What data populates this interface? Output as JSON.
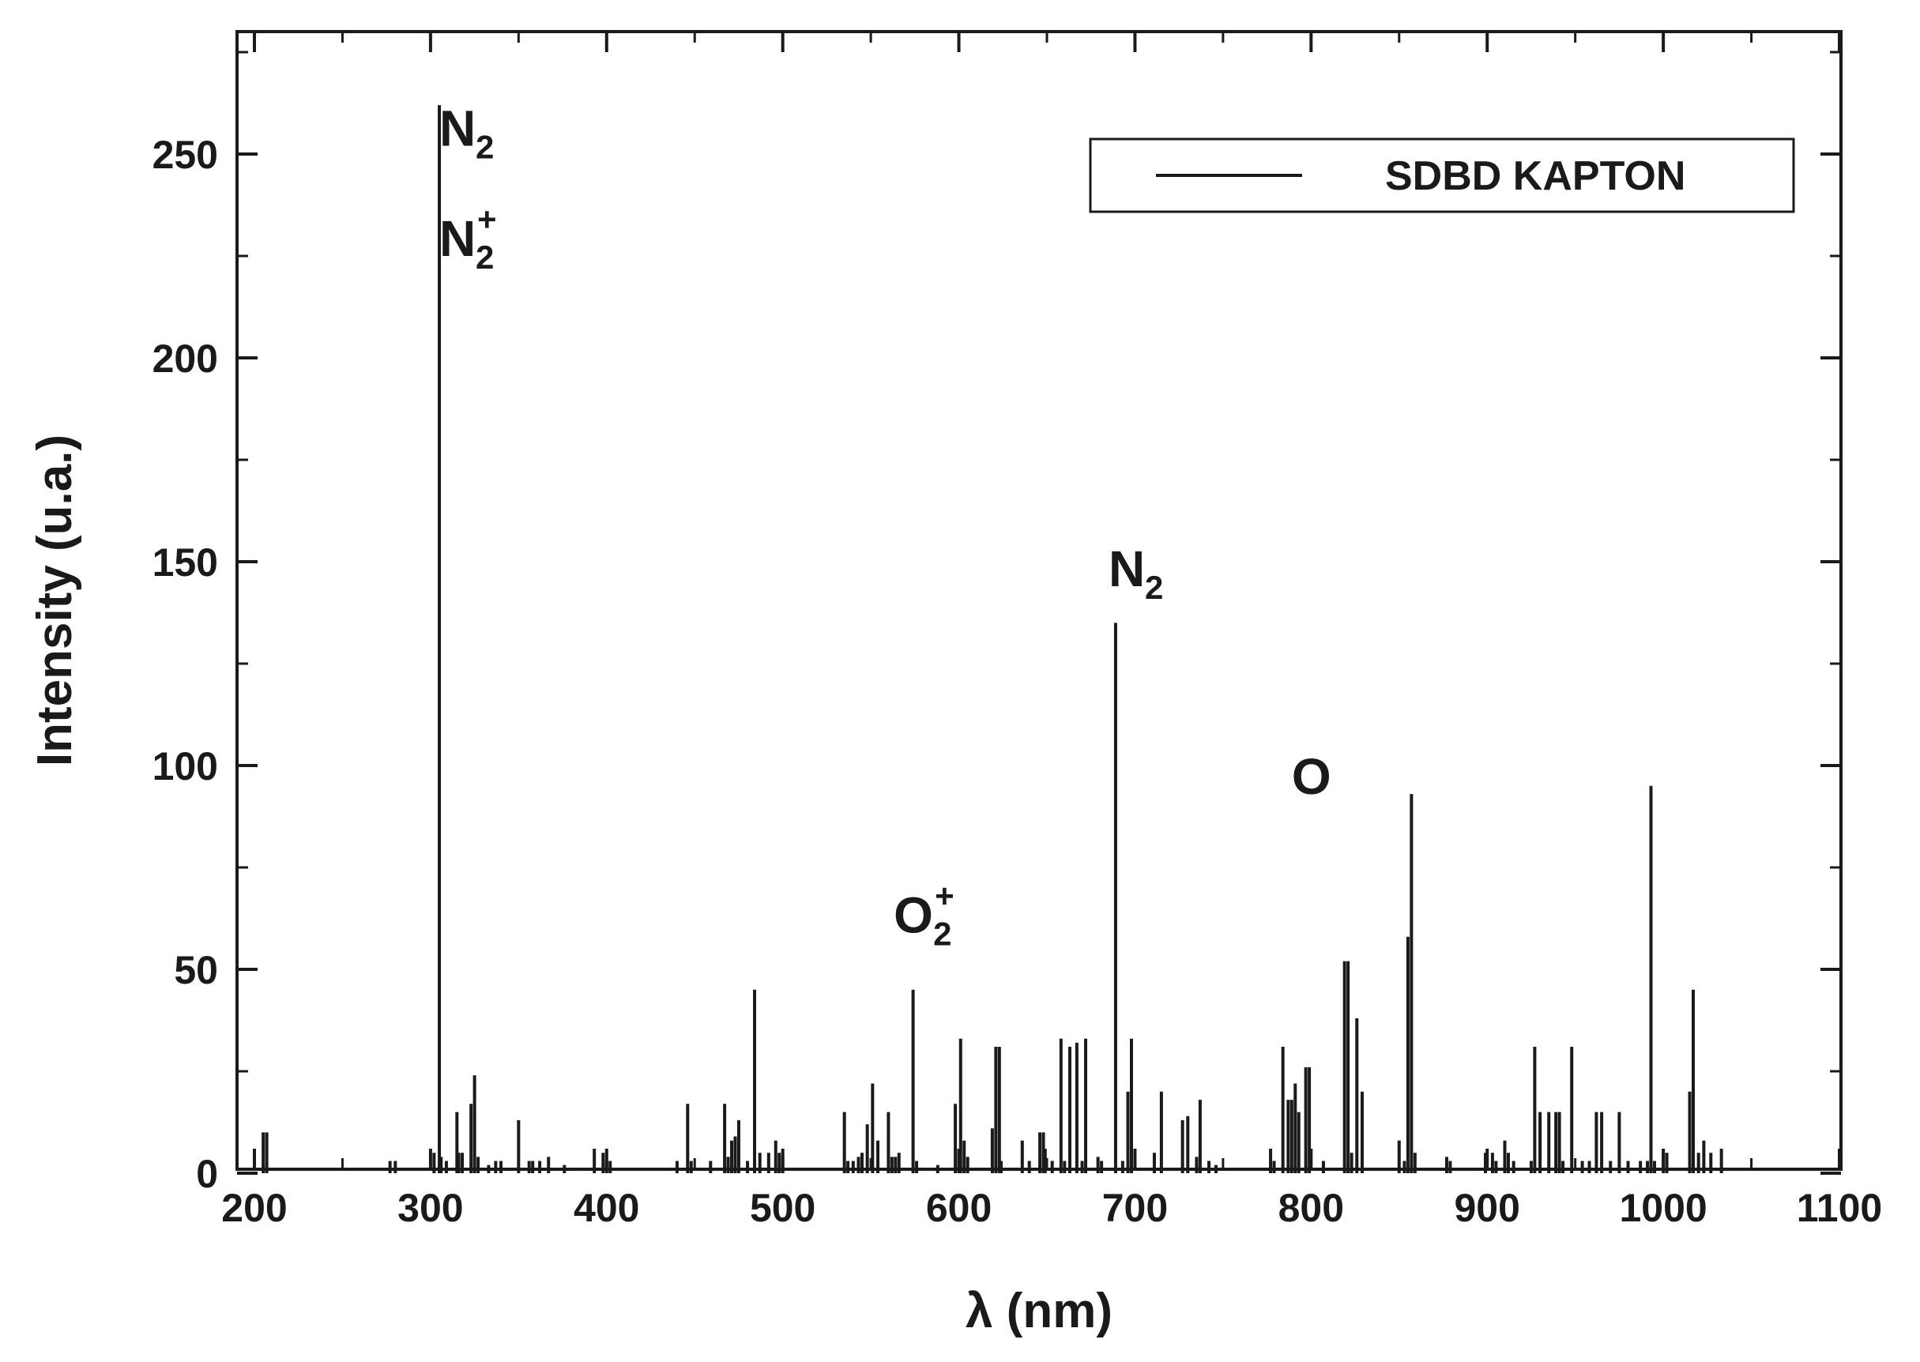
{
  "chart_data": {
    "type": "bar",
    "subtype": "emission-spectrum-lines",
    "xlabel": "λ (nm)",
    "ylabel": "Intensity (u.a.)",
    "xlim": [
      200,
      1100
    ],
    "ylim": [
      0,
      275
    ],
    "xticks": [
      200,
      300,
      400,
      500,
      600,
      700,
      800,
      900,
      1000,
      1100
    ],
    "yticks": [
      0,
      50,
      100,
      150,
      200,
      250
    ],
    "grid": false,
    "legend": {
      "placement": "top-right",
      "entries": [
        {
          "label": "SDBD KAPTON",
          "color": "#1a1a1a"
        }
      ]
    },
    "annotations": [
      {
        "id": "n2-a",
        "base": "N",
        "sub": "2",
        "sup": "",
        "x": 305,
        "y": 252
      },
      {
        "id": "n2plus",
        "base": "N",
        "sub": "2",
        "sup": "+",
        "x": 305,
        "y": 225
      },
      {
        "id": "o2plus",
        "base": "O",
        "sub": "2",
        "sup": "+",
        "x": 563,
        "y": 59
      },
      {
        "id": "n2-b",
        "base": "N",
        "sub": "2",
        "sup": "",
        "x": 685,
        "y": 144
      },
      {
        "id": "o",
        "base": "O",
        "sub": "",
        "sup": "",
        "x": 789,
        "y": 93
      }
    ],
    "series": [
      {
        "name": "SDBD KAPTON",
        "color": "#1a1a1a",
        "x": [
          205,
          207,
          277,
          280,
          302,
          305,
          306,
          309,
          315,
          316,
          318,
          323,
          325,
          327,
          333,
          337,
          340,
          350,
          356,
          358,
          362,
          367,
          376,
          393,
          398,
          400,
          402,
          440,
          446,
          448,
          459,
          467,
          469,
          471,
          473,
          475,
          480,
          484,
          487,
          492,
          496,
          498,
          500,
          535,
          537,
          540,
          543,
          545,
          548,
          551,
          554,
          560,
          562,
          564,
          566,
          574,
          576,
          588,
          598,
          600,
          601,
          603,
          605,
          619,
          621,
          623,
          624,
          636,
          640,
          646,
          648,
          649,
          653,
          658,
          660,
          663,
          667,
          670,
          672,
          679,
          681,
          689,
          693,
          696,
          698,
          711,
          715,
          727,
          730,
          735,
          737,
          742,
          746,
          777,
          779,
          784,
          787,
          789,
          791,
          793,
          797,
          799,
          807,
          819,
          821,
          823,
          826,
          829,
          850,
          853,
          855,
          857,
          859,
          877,
          879,
          899,
          903,
          905,
          910,
          912,
          915,
          925,
          927,
          930,
          935,
          939,
          941,
          943,
          948,
          954,
          958,
          962,
          965,
          970,
          975,
          980,
          987,
          991,
          993,
          995,
          1000,
          1002,
          1015,
          1017,
          1020,
          1023,
          1027,
          1033
        ],
        "values": [
          10,
          10,
          3,
          3,
          5,
          262,
          4,
          3,
          15,
          5,
          5,
          17,
          24,
          4,
          2,
          3,
          3,
          13,
          3,
          3,
          3,
          4,
          2,
          6,
          5,
          3,
          3,
          3,
          17,
          3,
          3,
          17,
          4,
          8,
          9,
          13,
          3,
          45,
          5,
          5,
          8,
          5,
          4,
          15,
          3,
          3,
          4,
          5,
          12,
          22,
          8,
          15,
          4,
          4,
          5,
          45,
          3,
          2,
          17,
          5,
          33,
          8,
          4,
          11,
          31,
          31,
          3,
          8,
          3,
          10,
          10,
          6,
          3,
          33,
          3,
          31,
          32,
          3,
          33,
          4,
          3,
          135,
          3,
          20,
          33,
          5,
          20,
          13,
          14,
          4,
          18,
          3,
          2,
          6,
          3,
          31,
          18,
          18,
          22,
          15,
          26,
          26,
          3,
          52,
          52,
          5,
          38,
          20,
          8,
          3,
          58,
          93,
          5,
          4,
          3,
          5,
          5,
          3,
          8,
          5,
          3,
          3,
          31,
          15,
          15,
          15,
          15,
          3,
          31,
          3,
          3,
          15,
          15,
          3,
          15,
          3,
          3,
          3,
          95,
          3,
          5,
          5,
          20,
          45,
          5,
          8,
          5,
          6
        ]
      }
    ]
  }
}
